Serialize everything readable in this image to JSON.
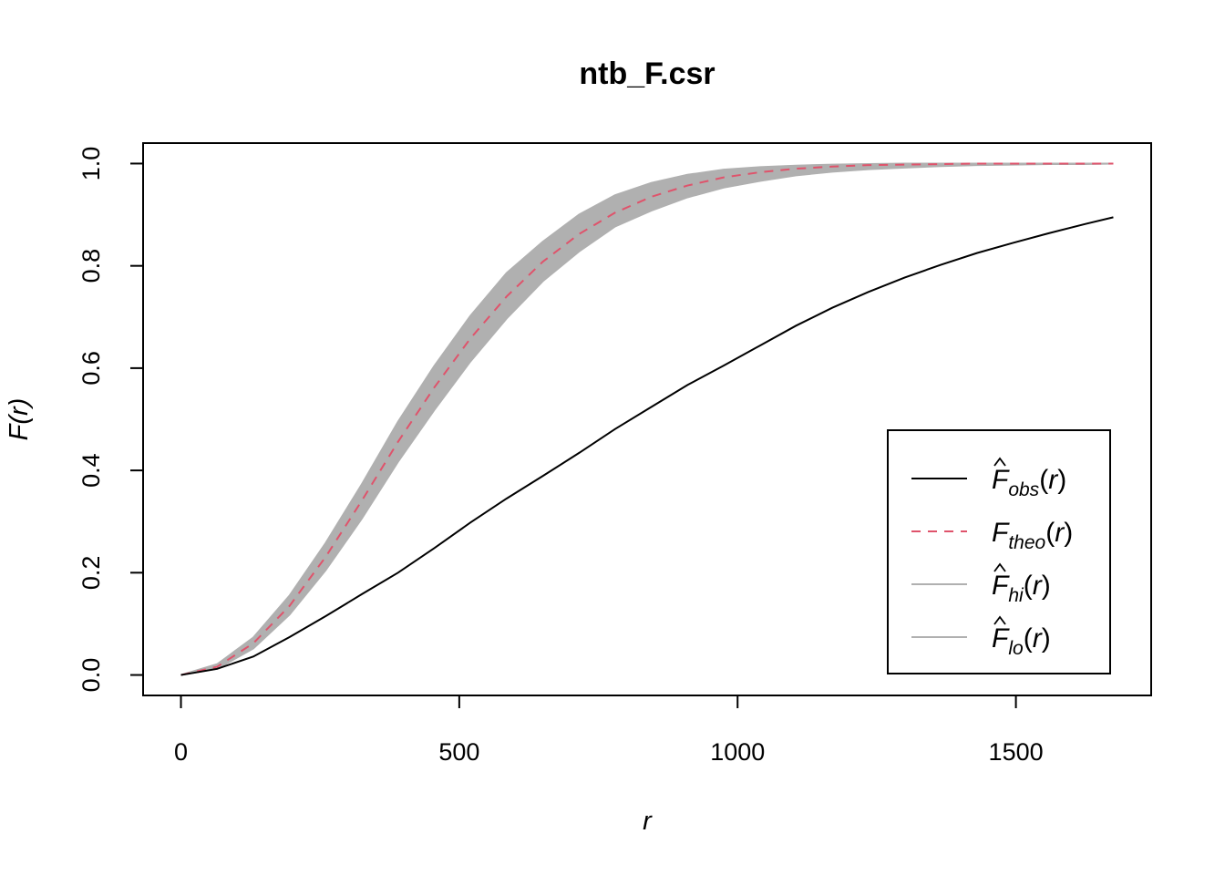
{
  "chart_data": {
    "type": "line",
    "title": "ntb_F.csr",
    "xlabel": "r",
    "ylabel": "F(r)",
    "xlim": [
      -68,
      1743
    ],
    "ylim": [
      -0.04,
      1.04
    ],
    "x_ticks": [
      0,
      500,
      1000,
      1500
    ],
    "y_ticks": [
      0.0,
      0.2,
      0.4,
      0.6,
      0.8,
      1.0
    ],
    "x_tick_labels": [
      "0",
      "500",
      "1000",
      "1500"
    ],
    "y_tick_labels": [
      "0.0",
      "0.2",
      "0.4",
      "0.6",
      "0.8",
      "1.0"
    ],
    "legend_position": "bottom-right",
    "x": [
      0,
      65,
      130,
      195,
      260,
      325,
      390,
      455,
      520,
      585,
      650,
      715,
      780,
      845,
      910,
      975,
      1040,
      1105,
      1170,
      1235,
      1300,
      1365,
      1430,
      1495,
      1560,
      1625,
      1675
    ],
    "series": [
      {
        "key": "obs",
        "legend_main": "F",
        "legend_sub": "obs",
        "hat": true,
        "color": "#000000",
        "style": "solid",
        "values": [
          0,
          0.012,
          0.036,
          0.074,
          0.115,
          0.158,
          0.2,
          0.248,
          0.298,
          0.345,
          0.389,
          0.434,
          0.481,
          0.524,
          0.567,
          0.605,
          0.644,
          0.683,
          0.718,
          0.749,
          0.777,
          0.802,
          0.825,
          0.845,
          0.864,
          0.882,
          0.895
        ]
      },
      {
        "key": "theo",
        "legend_main": "F",
        "legend_sub": "theo",
        "hat": false,
        "color": "#DF536B",
        "style": "dashed",
        "values": [
          0,
          0.016,
          0.062,
          0.135,
          0.231,
          0.341,
          0.456,
          0.562,
          0.658,
          0.74,
          0.808,
          0.862,
          0.904,
          0.935,
          0.957,
          0.973,
          0.983,
          0.99,
          0.994,
          0.997,
          0.998,
          0.999,
          1.0,
          1.0,
          1.0,
          1.0,
          1.0
        ]
      },
      {
        "key": "hi",
        "legend_main": "F",
        "legend_sub": "hi",
        "hat": true,
        "color": "#B0B0B0",
        "style": "band-upper",
        "values": [
          0,
          0.021,
          0.073,
          0.155,
          0.258,
          0.373,
          0.495,
          0.604,
          0.702,
          0.786,
          0.847,
          0.9,
          0.938,
          0.962,
          0.978,
          0.988,
          0.993,
          0.996,
          0.998,
          0.999,
          1.0,
          1.0,
          1.0,
          1.0,
          1.0,
          1.0,
          1.0
        ]
      },
      {
        "key": "lo",
        "legend_main": "F",
        "legend_sub": "lo",
        "hat": true,
        "color": "#B0B0B0",
        "style": "band-lower",
        "values": [
          0,
          0.012,
          0.052,
          0.118,
          0.205,
          0.306,
          0.417,
          0.518,
          0.613,
          0.697,
          0.77,
          0.828,
          0.877,
          0.908,
          0.934,
          0.953,
          0.966,
          0.977,
          0.984,
          0.989,
          0.992,
          0.995,
          0.997,
          0.998,
          0.999,
          0.999,
          1.0
        ]
      }
    ]
  }
}
